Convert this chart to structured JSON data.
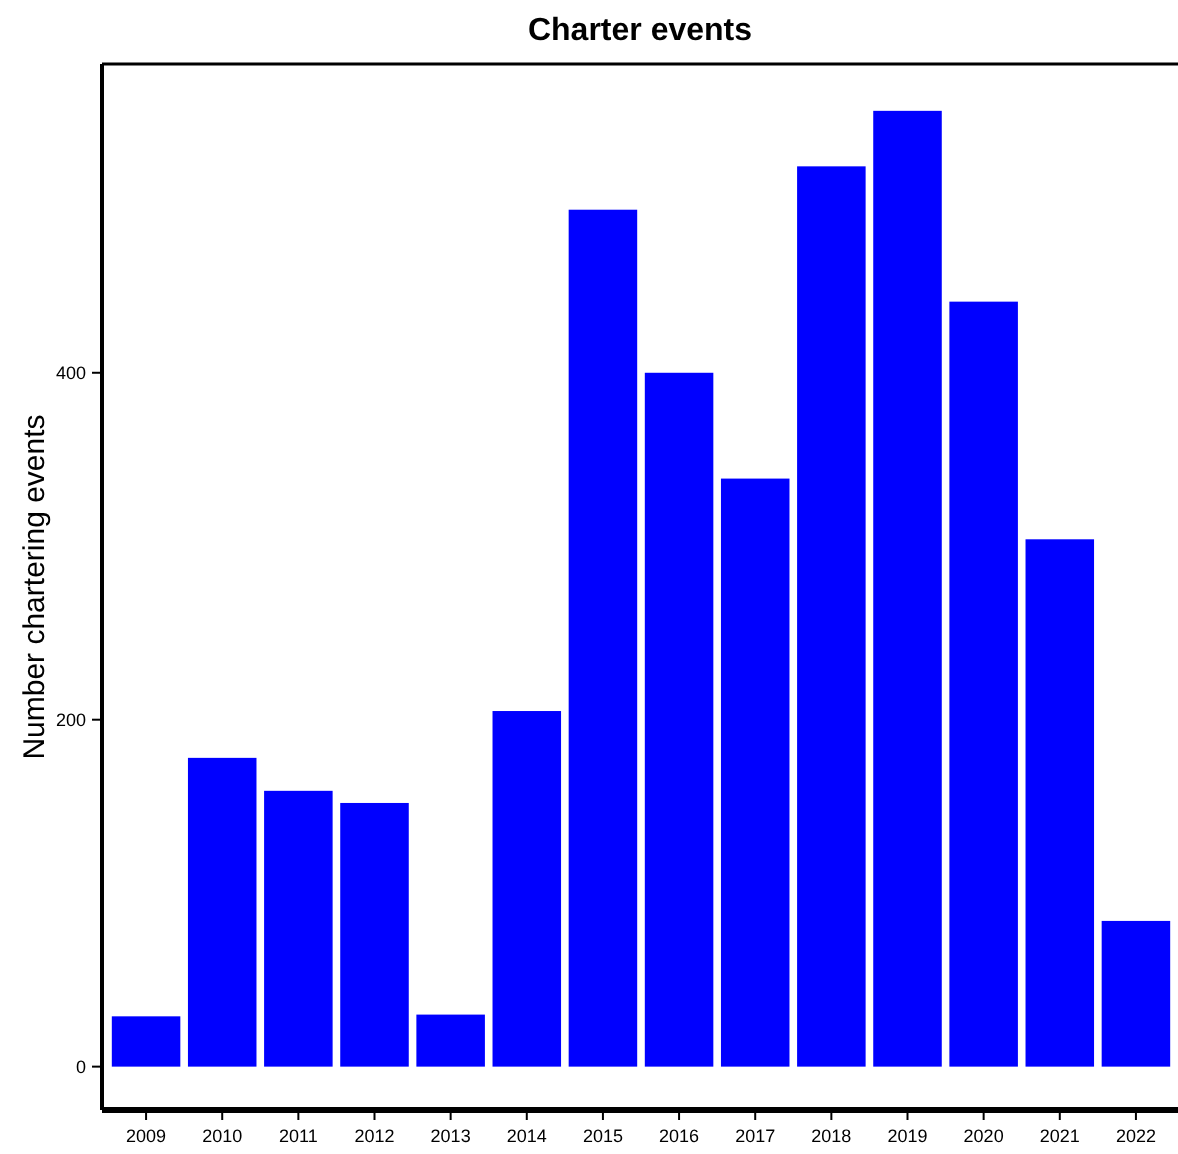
{
  "chart_data": {
    "type": "bar",
    "title": "Charter events",
    "ylabel": "Number chartering events",
    "categories": [
      "2009",
      "2010",
      "2011",
      "2012",
      "2013",
      "2014",
      "2015",
      "2016",
      "2017",
      "2018",
      "2019",
      "2020",
      "2021",
      "2022"
    ],
    "values": [
      29,
      178,
      159,
      152,
      30,
      205,
      494,
      400,
      339,
      519,
      551,
      441,
      304,
      84
    ],
    "color": "#0000ff",
    "ylim": [
      -25,
      578
    ],
    "yticks": [
      0,
      200,
      400
    ]
  }
}
